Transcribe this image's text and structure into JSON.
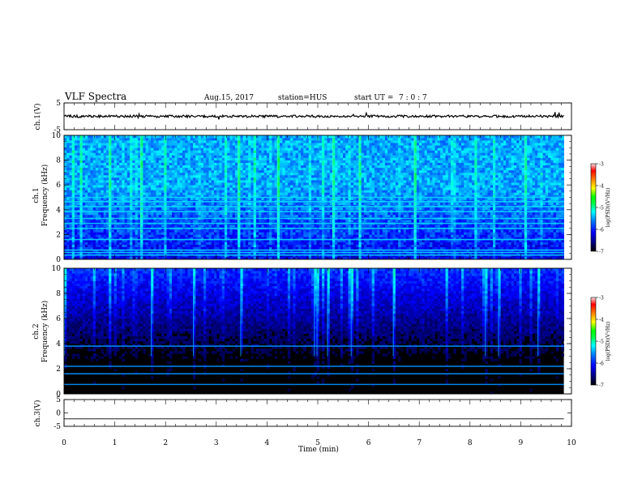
{
  "header": {
    "title": "VLF Spectra",
    "date": "Aug.15, 2017",
    "station": "station=HUS",
    "start_label": "start  UT =",
    "start_time": "7 : 0 : 7"
  },
  "chart_data": [
    {
      "type": "line",
      "name": "ch.1 waveform",
      "ylabel": "ch.1(V)",
      "ylim": [
        -5,
        5
      ],
      "yticks": [
        "5",
        "-5"
      ],
      "xlim": [
        0,
        10
      ],
      "trace_extent_min": 9.85,
      "baseline_v": 0
    },
    {
      "type": "heatmap",
      "name": "ch.1 spectrogram",
      "ylabel": "ch.1\nFrequency (kHz)",
      "ylabel_line1": "ch.1",
      "ylabel_line2": "Frequency (kHz)",
      "ylim": [
        0,
        10
      ],
      "yticks": [
        "0",
        "2",
        "4",
        "6",
        "8",
        "10"
      ],
      "xlim": [
        0,
        10
      ],
      "data_extent_min": 9.85,
      "background_level": "strong",
      "narrowband_lines_khz": [
        0.35,
        0.55,
        0.75,
        1.6,
        2.5,
        2.9,
        3.3,
        3.85,
        4.25,
        4.65,
        5.0
      ],
      "colorbar": {
        "label": "log(PSD)(V²/Hz)",
        "ticks": [
          "-3",
          "-4",
          "-5",
          "-6",
          "-7"
        ],
        "range": [
          -7,
          -3
        ]
      }
    },
    {
      "type": "heatmap",
      "name": "ch.2 spectrogram",
      "ylabel": "ch.2\nFrequency (kHz)",
      "ylabel_line1": "ch.2",
      "ylabel_line2": "Frequency (kHz)",
      "ylim": [
        0,
        10
      ],
      "yticks": [
        "0",
        "2",
        "4",
        "6",
        "8",
        "10"
      ],
      "xlim": [
        0,
        10
      ],
      "data_extent_min": 9.85,
      "background_level": "weak",
      "narrowband_lines_khz": [
        0.75,
        1.6,
        2.2,
        3.8
      ],
      "colorbar": {
        "label": "log(PSD)(V²/Hz)",
        "ticks": [
          "-3",
          "-4",
          "-5",
          "-6",
          "-7"
        ],
        "range": [
          -7,
          -3
        ]
      }
    },
    {
      "type": "line",
      "name": "ch.3 waveform",
      "ylabel": "ch.3(V)",
      "ylim": [
        -5,
        5
      ],
      "yticks": [
        "5",
        "0",
        "-5"
      ],
      "xlim": [
        0,
        10
      ],
      "trace_extent_min": 9.85,
      "baseline_v": -2.2
    }
  ],
  "xaxis": {
    "label": "Time  (min)",
    "ticks": [
      "0",
      "1",
      "2",
      "3",
      "4",
      "5",
      "6",
      "7",
      "8",
      "9",
      "10"
    ]
  },
  "colors": {
    "colormap": [
      "#000000",
      "#00007f",
      "#0000ff",
      "#0080ff",
      "#00ffff",
      "#00ff80",
      "#00ff00",
      "#ffff00",
      "#ff8000",
      "#ff0000",
      "#ffffff"
    ]
  }
}
